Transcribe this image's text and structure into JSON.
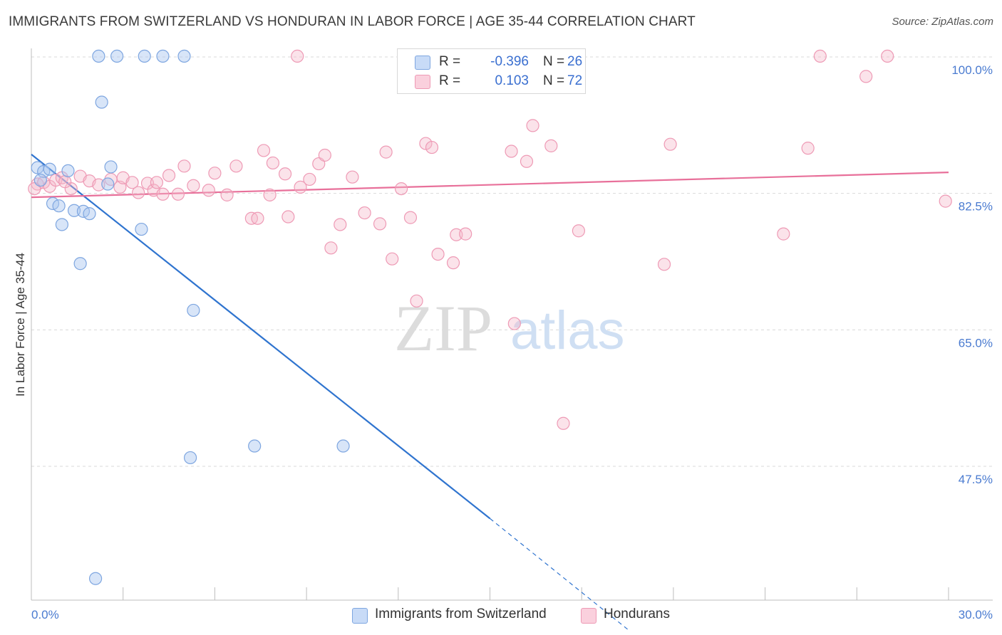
{
  "header": {
    "title": "IMMIGRANTS FROM SWITZERLAND VS HONDURAN IN LABOR FORCE | AGE 35-44 CORRELATION CHART",
    "source": "Source: ZipAtlas.com"
  },
  "watermark": {
    "zip": "ZIP",
    "atlas": "atlas"
  },
  "legend": {
    "rows": [
      {
        "r_label": "R =",
        "r_value": "-0.396",
        "n_label": "N =",
        "n_value": "26",
        "color": "#a9c6f0"
      },
      {
        "r_label": "R =",
        "r_value": "0.103",
        "n_label": "N =",
        "n_value": "72",
        "color": "#f6b8cb"
      }
    ]
  },
  "bottom_legend": {
    "swiss": "Immigrants from Switzerland",
    "honduran": "Hondurans"
  },
  "chart_data": {
    "type": "scatter",
    "title": "IMMIGRANTS FROM SWITZERLAND VS HONDURAN IN LABOR FORCE | AGE 35-44 CORRELATION CHART",
    "xlabel": "",
    "ylabel": "In Labor Force | Age 35-44",
    "xlim": [
      0,
      30
    ],
    "ylim": [
      32,
      102
    ],
    "x_tick_labels": [
      "0.0%",
      "30.0%"
    ],
    "y_tick_values": [
      100,
      82.5,
      65,
      47.5
    ],
    "y_tick_labels": [
      "100.0%",
      "82.5%",
      "65.0%",
      "47.5%"
    ],
    "grid": true,
    "series": [
      {
        "name": "Immigrants from Switzerland",
        "color": "#a9c6f0",
        "line_color": "#2f74cf",
        "trend": {
          "x": [
            0.0,
            15.0
          ],
          "y": [
            87.5,
            40.8
          ],
          "dashed_to": [
            19.5,
            26.6
          ]
        },
        "points": [
          {
            "x": 0.2,
            "y": 85.8
          },
          {
            "x": 0.4,
            "y": 85.3
          },
          {
            "x": 0.6,
            "y": 85.6
          },
          {
            "x": 0.3,
            "y": 84.2
          },
          {
            "x": 1.2,
            "y": 85.4
          },
          {
            "x": 2.6,
            "y": 85.9
          },
          {
            "x": 2.5,
            "y": 83.7
          },
          {
            "x": 0.7,
            "y": 81.2
          },
          {
            "x": 0.9,
            "y": 80.9
          },
          {
            "x": 1.4,
            "y": 80.3
          },
          {
            "x": 1.7,
            "y": 80.2
          },
          {
            "x": 1.9,
            "y": 79.9
          },
          {
            "x": 1.0,
            "y": 78.5
          },
          {
            "x": 3.6,
            "y": 77.9
          },
          {
            "x": 1.6,
            "y": 73.5
          },
          {
            "x": 2.3,
            "y": 94.2
          },
          {
            "x": 2.2,
            "y": 100.1
          },
          {
            "x": 2.8,
            "y": 100.1
          },
          {
            "x": 3.7,
            "y": 100.1
          },
          {
            "x": 4.3,
            "y": 100.1
          },
          {
            "x": 5.0,
            "y": 100.1
          },
          {
            "x": 5.3,
            "y": 67.5
          },
          {
            "x": 5.2,
            "y": 48.6
          },
          {
            "x": 7.3,
            "y": 50.1
          },
          {
            "x": 10.2,
            "y": 50.1
          },
          {
            "x": 2.1,
            "y": 33.1
          }
        ]
      },
      {
        "name": "Hondurans",
        "color": "#f6b8cb",
        "line_color": "#e8709a",
        "trend": {
          "x": [
            0.0,
            30.0
          ],
          "y": [
            82.0,
            85.2
          ]
        },
        "points": [
          {
            "x": 0.2,
            "y": 83.7
          },
          {
            "x": 0.4,
            "y": 83.9
          },
          {
            "x": 0.6,
            "y": 83.4
          },
          {
            "x": 0.8,
            "y": 84.2
          },
          {
            "x": 1.0,
            "y": 84.5
          },
          {
            "x": 1.3,
            "y": 83.1
          },
          {
            "x": 1.6,
            "y": 84.7
          },
          {
            "x": 1.9,
            "y": 84.1
          },
          {
            "x": 2.2,
            "y": 83.6
          },
          {
            "x": 2.6,
            "y": 84.3
          },
          {
            "x": 2.9,
            "y": 83.3
          },
          {
            "x": 3.0,
            "y": 84.5
          },
          {
            "x": 3.3,
            "y": 83.9
          },
          {
            "x": 3.5,
            "y": 82.6
          },
          {
            "x": 3.8,
            "y": 83.8
          },
          {
            "x": 4.0,
            "y": 82.9
          },
          {
            "x": 4.3,
            "y": 82.4
          },
          {
            "x": 4.5,
            "y": 84.8
          },
          {
            "x": 4.8,
            "y": 82.4
          },
          {
            "x": 5.0,
            "y": 86.0
          },
          {
            "x": 5.3,
            "y": 83.5
          },
          {
            "x": 5.8,
            "y": 82.9
          },
          {
            "x": 6.0,
            "y": 85.1
          },
          {
            "x": 6.4,
            "y": 82.3
          },
          {
            "x": 6.7,
            "y": 86.0
          },
          {
            "x": 7.2,
            "y": 79.3
          },
          {
            "x": 7.4,
            "y": 79.3
          },
          {
            "x": 7.6,
            "y": 88.0
          },
          {
            "x": 7.8,
            "y": 82.3
          },
          {
            "x": 7.9,
            "y": 86.4
          },
          {
            "x": 8.3,
            "y": 85.0
          },
          {
            "x": 8.4,
            "y": 79.5
          },
          {
            "x": 8.8,
            "y": 83.3
          },
          {
            "x": 9.1,
            "y": 84.3
          },
          {
            "x": 9.4,
            "y": 86.3
          },
          {
            "x": 9.6,
            "y": 87.4
          },
          {
            "x": 9.8,
            "y": 75.5
          },
          {
            "x": 10.1,
            "y": 78.5
          },
          {
            "x": 10.5,
            "y": 84.6
          },
          {
            "x": 10.9,
            "y": 80.0
          },
          {
            "x": 11.4,
            "y": 78.6
          },
          {
            "x": 11.6,
            "y": 87.8
          },
          {
            "x": 11.8,
            "y": 74.1
          },
          {
            "x": 12.1,
            "y": 83.1
          },
          {
            "x": 12.4,
            "y": 79.4
          },
          {
            "x": 12.6,
            "y": 68.7
          },
          {
            "x": 12.9,
            "y": 88.9
          },
          {
            "x": 13.1,
            "y": 88.4
          },
          {
            "x": 13.3,
            "y": 74.7
          },
          {
            "x": 13.8,
            "y": 73.6
          },
          {
            "x": 13.9,
            "y": 77.2
          },
          {
            "x": 14.2,
            "y": 77.3
          },
          {
            "x": 15.7,
            "y": 87.9
          },
          {
            "x": 15.8,
            "y": 65.8
          },
          {
            "x": 16.2,
            "y": 86.6
          },
          {
            "x": 16.4,
            "y": 91.2
          },
          {
            "x": 17.0,
            "y": 88.6
          },
          {
            "x": 17.4,
            "y": 53.0
          },
          {
            "x": 17.9,
            "y": 77.7
          },
          {
            "x": 8.7,
            "y": 100.1
          },
          {
            "x": 15.1,
            "y": 100.1
          },
          {
            "x": 20.7,
            "y": 73.4
          },
          {
            "x": 20.9,
            "y": 88.8
          },
          {
            "x": 24.6,
            "y": 77.3
          },
          {
            "x": 25.4,
            "y": 88.3
          },
          {
            "x": 25.8,
            "y": 100.1
          },
          {
            "x": 27.3,
            "y": 97.5
          },
          {
            "x": 28.0,
            "y": 100.1
          },
          {
            "x": 29.9,
            "y": 81.5
          },
          {
            "x": 0.1,
            "y": 83.1
          },
          {
            "x": 1.1,
            "y": 84.0
          },
          {
            "x": 4.1,
            "y": 83.9
          }
        ]
      }
    ]
  }
}
